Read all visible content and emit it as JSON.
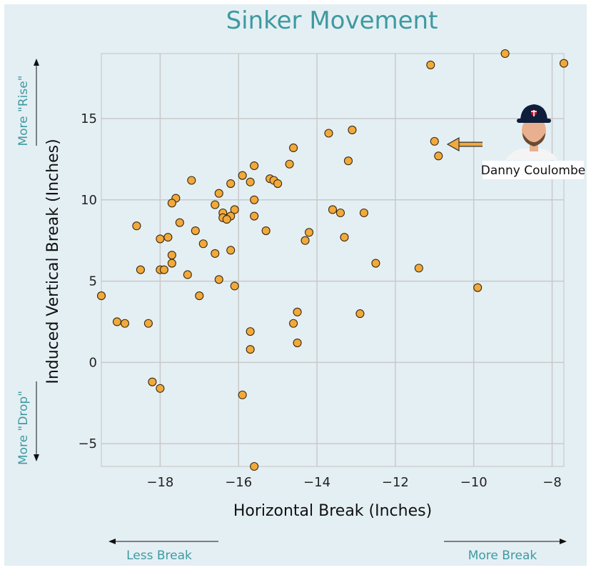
{
  "chart_data": {
    "type": "scatter",
    "title": "Sinker Movement",
    "xlabel": "Horizontal Break (Inches)",
    "ylabel": "Induced Vertical Break (Inches)",
    "xlim": [
      -19.5,
      -7.7
    ],
    "ylim": [
      -6.4,
      19.0
    ],
    "xticks": [
      -18,
      -16,
      -14,
      -12,
      -10,
      -8
    ],
    "yticks": [
      -5,
      0,
      5,
      10,
      15
    ],
    "grid": true,
    "points": [
      [
        -9.2,
        19.0
      ],
      [
        -11.1,
        18.3
      ],
      [
        -7.7,
        18.4
      ],
      [
        -13.1,
        14.3
      ],
      [
        -13.7,
        14.1
      ],
      [
        -11.0,
        13.6
      ],
      [
        -10.9,
        12.7
      ],
      [
        -14.6,
        13.2
      ],
      [
        -13.2,
        12.4
      ],
      [
        -14.7,
        12.2
      ],
      [
        -15.6,
        12.1
      ],
      [
        -15.9,
        11.5
      ],
      [
        -15.7,
        11.1
      ],
      [
        -15.2,
        11.3
      ],
      [
        -15.1,
        11.2
      ],
      [
        -15.0,
        11.0
      ],
      [
        -17.2,
        11.2
      ],
      [
        -16.2,
        11.0
      ],
      [
        -16.5,
        10.4
      ],
      [
        -17.6,
        10.1
      ],
      [
        -17.7,
        9.8
      ],
      [
        -16.6,
        9.7
      ],
      [
        -15.6,
        10.0
      ],
      [
        -16.1,
        9.4
      ],
      [
        -16.4,
        9.2
      ],
      [
        -16.2,
        9.0
      ],
      [
        -16.4,
        8.9
      ],
      [
        -16.3,
        8.8
      ],
      [
        -15.6,
        9.0
      ],
      [
        -13.6,
        9.4
      ],
      [
        -13.4,
        9.2
      ],
      [
        -12.8,
        9.2
      ],
      [
        -17.5,
        8.6
      ],
      [
        -18.6,
        8.4
      ],
      [
        -17.1,
        8.1
      ],
      [
        -15.3,
        8.1
      ],
      [
        -14.2,
        8.0
      ],
      [
        -17.8,
        7.7
      ],
      [
        -18.0,
        7.6
      ],
      [
        -13.3,
        7.7
      ],
      [
        -14.3,
        7.5
      ],
      [
        -16.9,
        7.3
      ],
      [
        -16.2,
        6.9
      ],
      [
        -16.6,
        6.7
      ],
      [
        -17.7,
        6.6
      ],
      [
        -17.7,
        6.1
      ],
      [
        -12.5,
        6.1
      ],
      [
        -11.4,
        5.8
      ],
      [
        -18.5,
        5.7
      ],
      [
        -18.0,
        5.7
      ],
      [
        -17.9,
        5.7
      ],
      [
        -17.3,
        5.4
      ],
      [
        -16.5,
        5.1
      ],
      [
        -16.1,
        4.7
      ],
      [
        -9.9,
        4.6
      ],
      [
        -19.5,
        4.1
      ],
      [
        -17.0,
        4.1
      ],
      [
        -14.5,
        3.1
      ],
      [
        -12.9,
        3.0
      ],
      [
        -19.1,
        2.5
      ],
      [
        -18.9,
        2.4
      ],
      [
        -18.3,
        2.4
      ],
      [
        -14.6,
        2.4
      ],
      [
        -15.7,
        1.9
      ],
      [
        -14.5,
        1.2
      ],
      [
        -15.7,
        0.8
      ],
      [
        -18.2,
        -1.2
      ],
      [
        -18.0,
        -1.6
      ],
      [
        -15.9,
        -2.0
      ],
      [
        -15.6,
        -6.4
      ]
    ],
    "annotation": {
      "label": "Danny Coulombe",
      "point": [
        -10.9,
        13.6
      ]
    },
    "notes": {
      "y_top": "More \"Rise\"",
      "y_bottom": "More \"Drop\"",
      "x_left": "Less Break",
      "x_right": "More Break"
    },
    "colors": {
      "background": "#e4eff4",
      "accent": "#3e9aa0",
      "marker_fill": "#f2a93b",
      "marker_edge": "#3a2a10",
      "grid": "#c9c9c9",
      "arrow": "#f2a93b"
    }
  }
}
